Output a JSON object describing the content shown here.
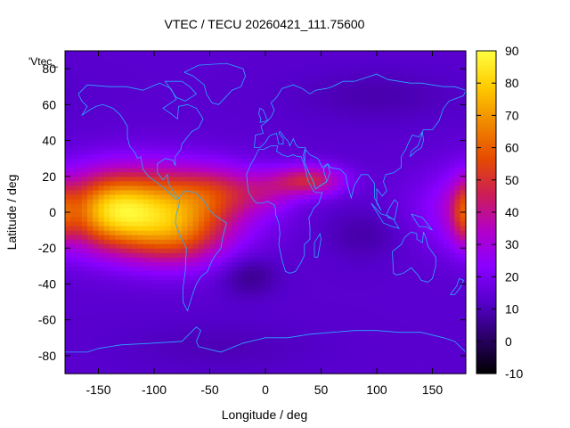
{
  "chart_data": {
    "type": "heatmap",
    "title": "VTEC / TECU 20260421_111.75600",
    "xlabel": "Longitude / deg",
    "ylabel": "Latitude / deg",
    "legend_label": "'Vtec_",
    "xlim": [
      -180,
      180
    ],
    "ylim": [
      -90,
      90
    ],
    "xticks": [
      -150,
      -100,
      -50,
      0,
      50,
      100,
      150
    ],
    "yticks": [
      -80,
      -60,
      -40,
      -20,
      0,
      20,
      40,
      60,
      80
    ],
    "cbrange": [
      -10,
      90
    ],
    "cbticks": [
      -10,
      0,
      10,
      20,
      30,
      40,
      50,
      60,
      70,
      80,
      90
    ],
    "palette": [
      "#000000",
      "#2a0066",
      "#5600cc",
      "#8a00ff",
      "#b300c8",
      "#cc1e55",
      "#e64b00",
      "#f08a00",
      "#ffcc00",
      "#ffff40"
    ],
    "grid": false,
    "overlay": "coastlines",
    "overlay_color": "#29aaff",
    "background_vtec": 13,
    "features": [
      {
        "lon": -110,
        "lat": 2,
        "sx": 55,
        "sy": 16,
        "amp": 58
      },
      {
        "lon": -80,
        "lat": -15,
        "sx": 32,
        "sy": 12,
        "amp": 22
      },
      {
        "lon": -140,
        "lat": 0,
        "sx": 25,
        "sy": 14,
        "amp": 20
      },
      {
        "lon": -40,
        "lat": 12,
        "sx": 30,
        "sy": 10,
        "amp": 18
      },
      {
        "lon": 40,
        "lat": 18,
        "sx": 22,
        "sy": 6,
        "amp": 32
      },
      {
        "lon": 5,
        "lat": 12,
        "sx": 18,
        "sy": 8,
        "amp": 10
      },
      {
        "lon": 178,
        "lat": 0,
        "sx": 8,
        "sy": 12,
        "amp": 18
      },
      {
        "lon": -15,
        "lat": -35,
        "sx": 18,
        "sy": 8,
        "amp": -8
      },
      {
        "lon": 90,
        "lat": -12,
        "sx": 25,
        "sy": 10,
        "amp": -5
      },
      {
        "lon": 100,
        "lat": 65,
        "sx": 50,
        "sy": 10,
        "amp": -4
      },
      {
        "lon": -40,
        "lat": -75,
        "sx": 60,
        "sy": 10,
        "amp": -3
      }
    ]
  }
}
